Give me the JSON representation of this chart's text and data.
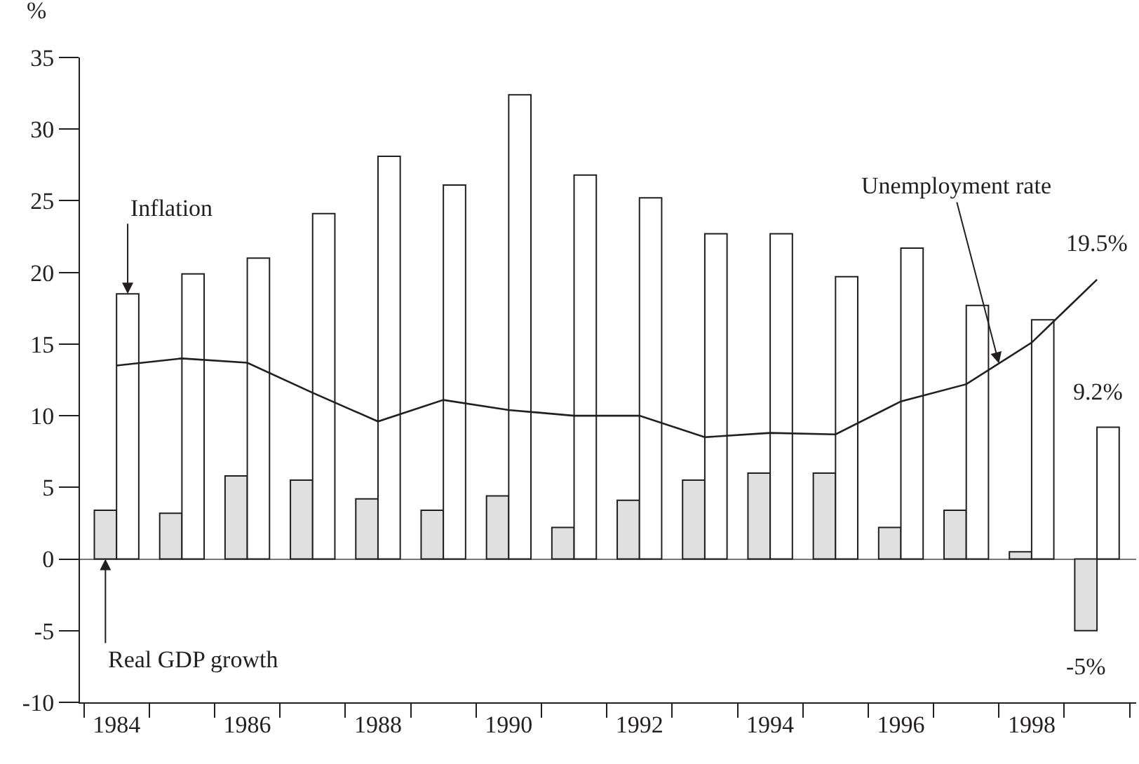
{
  "chart_data": {
    "type": "bar",
    "ylabel": "%",
    "categories": [
      "1984",
      null,
      "1986",
      null,
      "1988",
      null,
      "1990",
      null,
      "1992",
      null,
      "1994",
      null,
      "1996",
      null,
      "1998",
      null
    ],
    "series": [
      {
        "name": "Real GDP growth",
        "color": "#e0e0e0",
        "values": [
          3.4,
          3.2,
          5.8,
          5.5,
          4.2,
          3.4,
          4.4,
          2.2,
          4.1,
          5.5,
          6,
          6,
          2.2,
          3.4,
          0.5,
          -5
        ]
      },
      {
        "name": "Inflation",
        "color": "#ffffff",
        "values": [
          18.5,
          19.9,
          21,
          24.1,
          28.1,
          26.1,
          32.4,
          26.8,
          25.2,
          22.7,
          22.7,
          19.7,
          21.7,
          17.7,
          16.7,
          9.2
        ]
      },
      {
        "name": "Unemployment rate",
        "type": "line",
        "color": "#231f20",
        "values": [
          13.5,
          14,
          13.7,
          11.6,
          9.6,
          11.1,
          10.4,
          10,
          10,
          8.5,
          8.8,
          8.7,
          11,
          12.2,
          15.1,
          19.5
        ]
      }
    ],
    "ylim": [
      -10,
      35
    ],
    "yticks": [
      -10,
      -5,
      0,
      5,
      10,
      15,
      20,
      25,
      30,
      35
    ],
    "legend": false,
    "annotations": [
      {
        "text": "19.5%",
        "y": 19.5
      },
      {
        "text": "9.2%",
        "y": 9.2
      },
      {
        "text": "-5%",
        "y": -5
      }
    ]
  }
}
